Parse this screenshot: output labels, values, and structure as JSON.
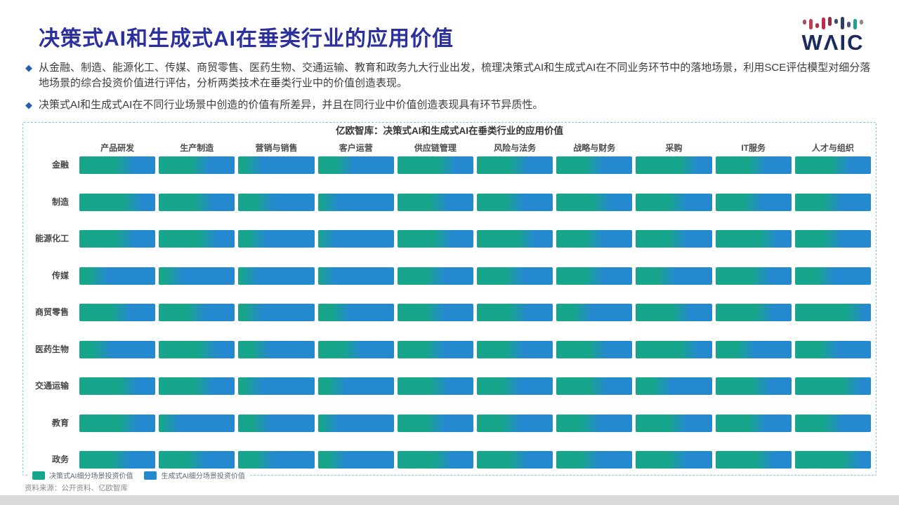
{
  "page": {
    "title": "决策式AI和生成式AI在垂类行业的应用价值",
    "bullet_marker": "◆",
    "bullets": [
      "从金融、制造、能源化工、传媒、商贸零售、医药生物、交通运输、教育和政务九大行业出发，梳理决策式AI和生成式AI在不同业务环节中的落地场景，利用SCE评估模型对细分落地场景的综合投资价值进行评估，分析两类技术在垂类行业中的价值创造表现。",
      "决策式AI和生成式AI在不同行业场景中创造的价值有所差异，并且在同行业中价值创造表现具有环节异质性。"
    ],
    "source": "资料来源：公开资料、亿欧智库",
    "logo": {
      "text": "WΛIC",
      "text_color": "#1d2a5e",
      "marks": [
        {
          "h": 7,
          "raise": 7,
          "c": "#a35555"
        },
        {
          "h": 15,
          "raise": 0,
          "c": "#c23d55"
        },
        {
          "h": 7,
          "raise": 2,
          "c": "#b23048"
        },
        {
          "h": 17,
          "raise": 0,
          "c": "#c22848"
        },
        {
          "h": 13,
          "raise": 5,
          "c": "#8e2d44"
        },
        {
          "h": 7,
          "raise": 8,
          "c": "#3c4a77"
        },
        {
          "h": 18,
          "raise": 0,
          "c": "#313e66"
        },
        {
          "h": 8,
          "raise": 3,
          "c": "#4a5680"
        },
        {
          "h": 15,
          "raise": 0,
          "c": "#19a38f"
        },
        {
          "h": 7,
          "raise": 7,
          "c": "#8c8c8c"
        }
      ]
    }
  },
  "chart_data": {
    "type": "bar",
    "title": "亿欧智库：决策式AI和生成式AI在垂类行业的应用价值",
    "columns": [
      "产品研发",
      "生产制造",
      "营销与销售",
      "客户运营",
      "供应链管理",
      "风险与法务",
      "战略与财务",
      "采购",
      "IT服务",
      "人才与组织"
    ],
    "rows": [
      "金融",
      "制造",
      "能源化工",
      "传媒",
      "商贸零售",
      "医药生物",
      "交通运输",
      "教育",
      "政务"
    ],
    "colors": {
      "decision": "#17a58c",
      "generative": "#2589cf"
    },
    "legend": [
      {
        "label": "决策式AI细分场景投资价值",
        "color": "#17a58c"
      },
      {
        "label": "生成式AI细分场景投资价值",
        "color": "#2589cf"
      }
    ],
    "decision_share": [
      [
        0.6,
        0.55,
        0.2,
        0.35,
        0.65,
        0.55,
        0.5,
        0.7,
        0.55,
        0.6
      ],
      [
        0.7,
        0.6,
        0.35,
        0.15,
        0.55,
        0.5,
        0.6,
        0.55,
        0.5,
        0.5
      ],
      [
        0.6,
        0.65,
        0.25,
        0.1,
        0.6,
        0.65,
        0.5,
        0.55,
        0.7,
        0.5
      ],
      [
        0.25,
        0.2,
        0.15,
        0.1,
        0.5,
        0.5,
        0.5,
        0.4,
        0.6,
        0.4
      ],
      [
        0.55,
        0.5,
        0.2,
        0.3,
        0.5,
        0.55,
        0.35,
        0.6,
        0.65,
        0.8
      ],
      [
        0.3,
        0.65,
        0.3,
        0.45,
        0.5,
        0.5,
        0.55,
        0.7,
        0.4,
        0.45
      ],
      [
        0.65,
        0.6,
        0.2,
        0.25,
        0.55,
        0.45,
        0.55,
        0.35,
        0.6,
        0.75
      ],
      [
        0.65,
        0.15,
        0.3,
        0.15,
        0.5,
        0.45,
        0.45,
        0.55,
        0.55,
        0.5
      ],
      [
        0.55,
        0.5,
        0.35,
        0.25,
        0.6,
        0.55,
        0.45,
        0.55,
        0.65,
        0.75
      ]
    ]
  }
}
